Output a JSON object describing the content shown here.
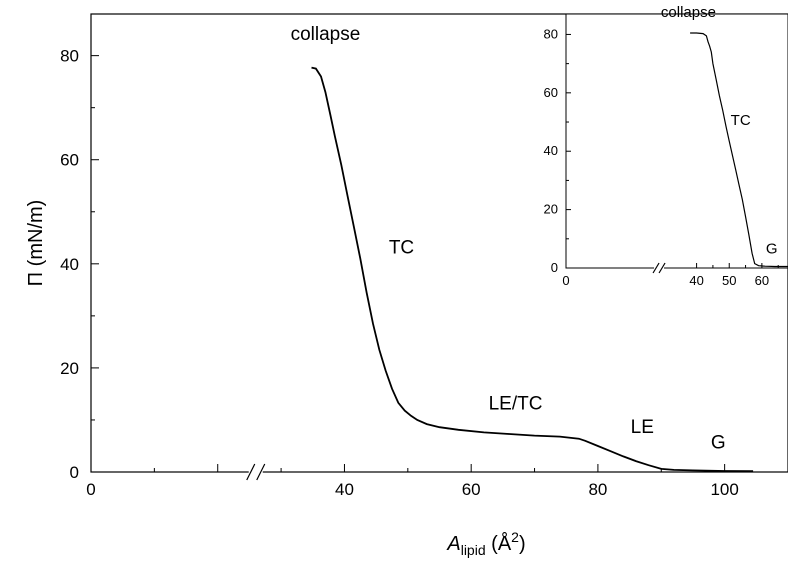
{
  "chart_data": [
    {
      "type": "line",
      "xlabel": {
        "main": "A",
        "sub": "lipid",
        "unit": " (Å",
        "sup": "2",
        "close": ")"
      },
      "ylabel": "Π (mN/m)",
      "xlim": [
        0,
        110
      ],
      "ylim": [
        0,
        88
      ],
      "axis_break": "x",
      "x_ticks": [
        0,
        20,
        40,
        60,
        80,
        100
      ],
      "x_tick_labels": [
        "0",
        "",
        "40",
        "60",
        "80",
        "100"
      ],
      "y_ticks": [
        0,
        20,
        40,
        60,
        80
      ],
      "y_tick_labels": [
        "0",
        "20",
        "40",
        "60",
        "80"
      ],
      "grid": false,
      "annotations": [
        {
          "text": "collapse",
          "x": 37,
          "y": 83
        },
        {
          "text": "TC",
          "x": 49,
          "y": 42
        },
        {
          "text": "LE/TC",
          "x": 67,
          "y": 12
        },
        {
          "text": "LE",
          "x": 87,
          "y": 7.5
        },
        {
          "text": "G",
          "x": 99,
          "y": 4.5
        }
      ],
      "series": [
        {
          "x": [
            34.8,
            35.5,
            36.3,
            37,
            37.8,
            38.5,
            39.5,
            40.5,
            41.5,
            42.5,
            43.5,
            44.5,
            45.5,
            46.5,
            47.5,
            48.5,
            49.5,
            50.5,
            51.5,
            53,
            55,
            58,
            62,
            66,
            70,
            74,
            77,
            78,
            80,
            82,
            84,
            86,
            88,
            90,
            92,
            95,
            100,
            104.5
          ],
          "y": [
            77.7,
            77.5,
            76,
            73,
            68.5,
            64.5,
            59,
            53,
            47,
            41,
            34.5,
            28.5,
            23.5,
            19.5,
            16,
            13.3,
            11.8,
            10.8,
            10,
            9.2,
            8.6,
            8.1,
            7.6,
            7.3,
            7,
            6.8,
            6.4,
            6,
            5,
            4,
            3,
            2.1,
            1.3,
            0.6,
            0.4,
            0.3,
            0.2,
            0.15
          ]
        }
      ]
    },
    {
      "type": "line",
      "xlim": [
        0,
        68
      ],
      "ylim": [
        0,
        87
      ],
      "axis_break": "x",
      "x_ticks": [
        0,
        40,
        50,
        60
      ],
      "x_tick_labels": [
        "0",
        "40",
        "50",
        "60"
      ],
      "y_ticks": [
        0,
        20,
        40,
        60,
        80
      ],
      "y_tick_labels": [
        "0",
        "20",
        "40",
        "60",
        "80"
      ],
      "grid": false,
      "legend": "none",
      "annotations": [
        {
          "text": "collapse",
          "x": 37.5,
          "y": 86
        },
        {
          "text": "TC",
          "x": 53.5,
          "y": 49
        },
        {
          "text": "G",
          "x": 63,
          "y": 5
        }
      ],
      "series": [
        {
          "x": [
            38,
            40,
            42,
            43,
            43.5,
            44,
            44.5,
            45,
            46,
            47,
            48,
            49,
            50,
            51,
            52,
            53,
            54,
            55,
            56,
            57,
            57.8,
            59,
            61,
            64,
            68
          ],
          "y": [
            80.5,
            80.5,
            80.3,
            79.5,
            77.5,
            76,
            74,
            70,
            64.5,
            59,
            54,
            48.5,
            43.5,
            38.5,
            33.5,
            28.5,
            23.5,
            17.5,
            11.5,
            5,
            1.5,
            0.8,
            0.6,
            0.5,
            0.5
          ]
        }
      ]
    }
  ]
}
